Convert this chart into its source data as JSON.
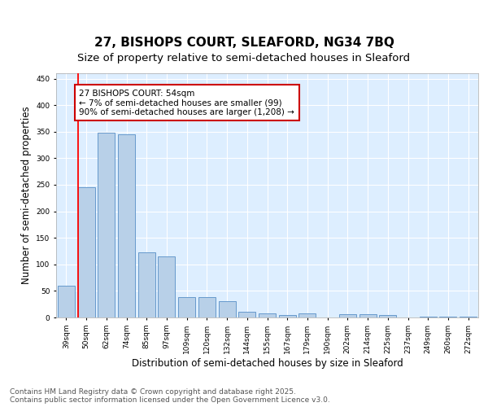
{
  "title_line1": "27, BISHOPS COURT, SLEAFORD, NG34 7BQ",
  "title_line2": "Size of property relative to semi-detached houses in Sleaford",
  "xlabel": "Distribution of semi-detached houses by size in Sleaford",
  "ylabel": "Number of semi-detached properties",
  "categories": [
    "39sqm",
    "50sqm",
    "62sqm",
    "74sqm",
    "85sqm",
    "97sqm",
    "109sqm",
    "120sqm",
    "132sqm",
    "144sqm",
    "155sqm",
    "167sqm",
    "179sqm",
    "190sqm",
    "202sqm",
    "214sqm",
    "225sqm",
    "237sqm",
    "249sqm",
    "260sqm",
    "272sqm"
  ],
  "values": [
    60,
    245,
    348,
    345,
    122,
    115,
    38,
    38,
    30,
    10,
    7,
    5,
    7,
    0,
    6,
    6,
    5,
    0,
    2,
    1,
    1
  ],
  "bar_color": "#b8d0e8",
  "bar_edge_color": "#6699cc",
  "red_line_index": 1,
  "annotation_title": "27 BISHOPS COURT: 54sqm",
  "annotation_line1": "← 7% of semi-detached houses are smaller (99)",
  "annotation_line2": "90% of semi-detached houses are larger (1,208) →",
  "annotation_box_facecolor": "#ffffff",
  "annotation_box_edgecolor": "#cc0000",
  "footer_line1": "Contains HM Land Registry data © Crown copyright and database right 2025.",
  "footer_line2": "Contains public sector information licensed under the Open Government Licence v3.0.",
  "ylim": [
    0,
    460
  ],
  "yticks": [
    0,
    50,
    100,
    150,
    200,
    250,
    300,
    350,
    400,
    450
  ],
  "fig_bg_color": "#ffffff",
  "plot_bg_color": "#ddeeff",
  "grid_color": "#ffffff",
  "title_fontsize": 11,
  "subtitle_fontsize": 9.5,
  "tick_fontsize": 6.5,
  "label_fontsize": 8.5,
  "footer_fontsize": 6.5,
  "annot_fontsize": 7.5
}
